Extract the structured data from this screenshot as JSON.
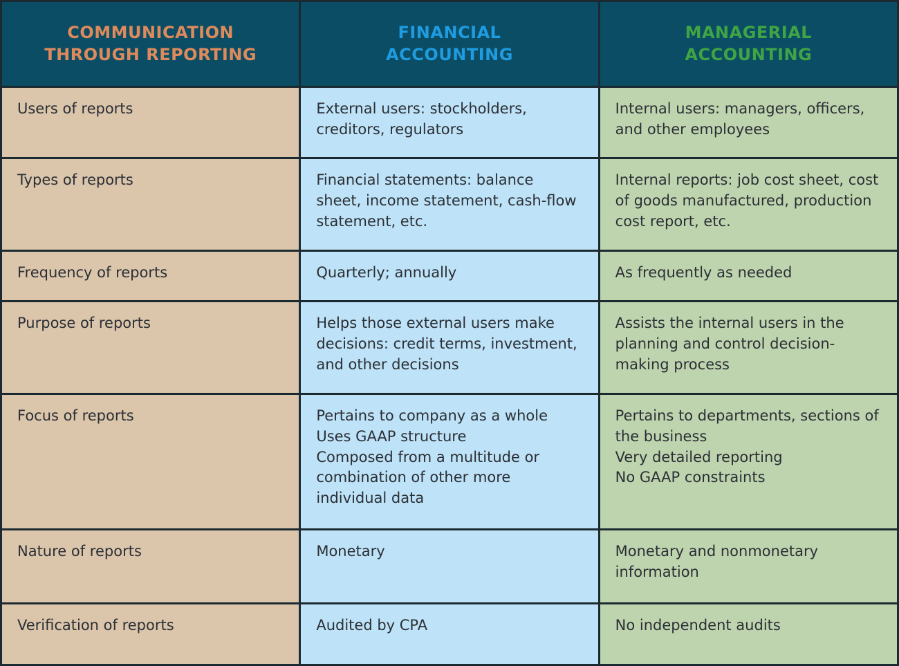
{
  "chart_data": {
    "type": "table",
    "columns": [
      {
        "label": "COMMUNICATION\nTHROUGH REPORTING",
        "text_color": "#de8a5c"
      },
      {
        "label": "FINANCIAL\nACCOUNTING",
        "text_color": "#1f9be0"
      },
      {
        "label": "MANAGERIAL\nACCOUNTING",
        "text_color": "#3fa544"
      }
    ],
    "rows": [
      {
        "label": "Users of reports",
        "financial": "External users: stockholders, creditors, regulators",
        "managerial": "Internal users: managers, officers, and other employees"
      },
      {
        "label": "Types of reports",
        "financial": "Financial statements: balance sheet, income statement, cash-flow statement, etc.",
        "managerial": "Internal reports: job cost sheet, cost of goods manufactured, production cost report, etc."
      },
      {
        "label": "Frequency of reports",
        "financial": "Quarterly; annually",
        "managerial": "As frequently as needed"
      },
      {
        "label": "Purpose of reports",
        "financial": "Helps those external users make decisions: credit terms, investment, and other decisions",
        "managerial": "Assists the internal users in the planning and control decision-making process"
      },
      {
        "label": "Focus of reports",
        "financial": "Pertains to company as a whole\nUses GAAP structure\nComposed from a multitude or combination of other more individual data",
        "managerial": "Pertains to departments, sections of the business\nVery detailed reporting\nNo GAAP constraints"
      },
      {
        "label": "Nature of reports",
        "financial": "Monetary",
        "managerial": "Monetary and nonmonetary information"
      },
      {
        "label": "Verification of reports",
        "financial": "Audited by CPA",
        "managerial": "No independent audits"
      }
    ],
    "colors": {
      "header_background": "#0b4d64",
      "header_text_communication": "#de8a5c",
      "header_text_financial": "#1f9be0",
      "header_text_managerial": "#3fa544",
      "label_column_background": "#dbc5ab",
      "financial_column_background": "#bee2f7",
      "managerial_column_background": "#bed4ae",
      "grid_border": "#1b2a31",
      "body_text": "#2b2f35"
    }
  }
}
